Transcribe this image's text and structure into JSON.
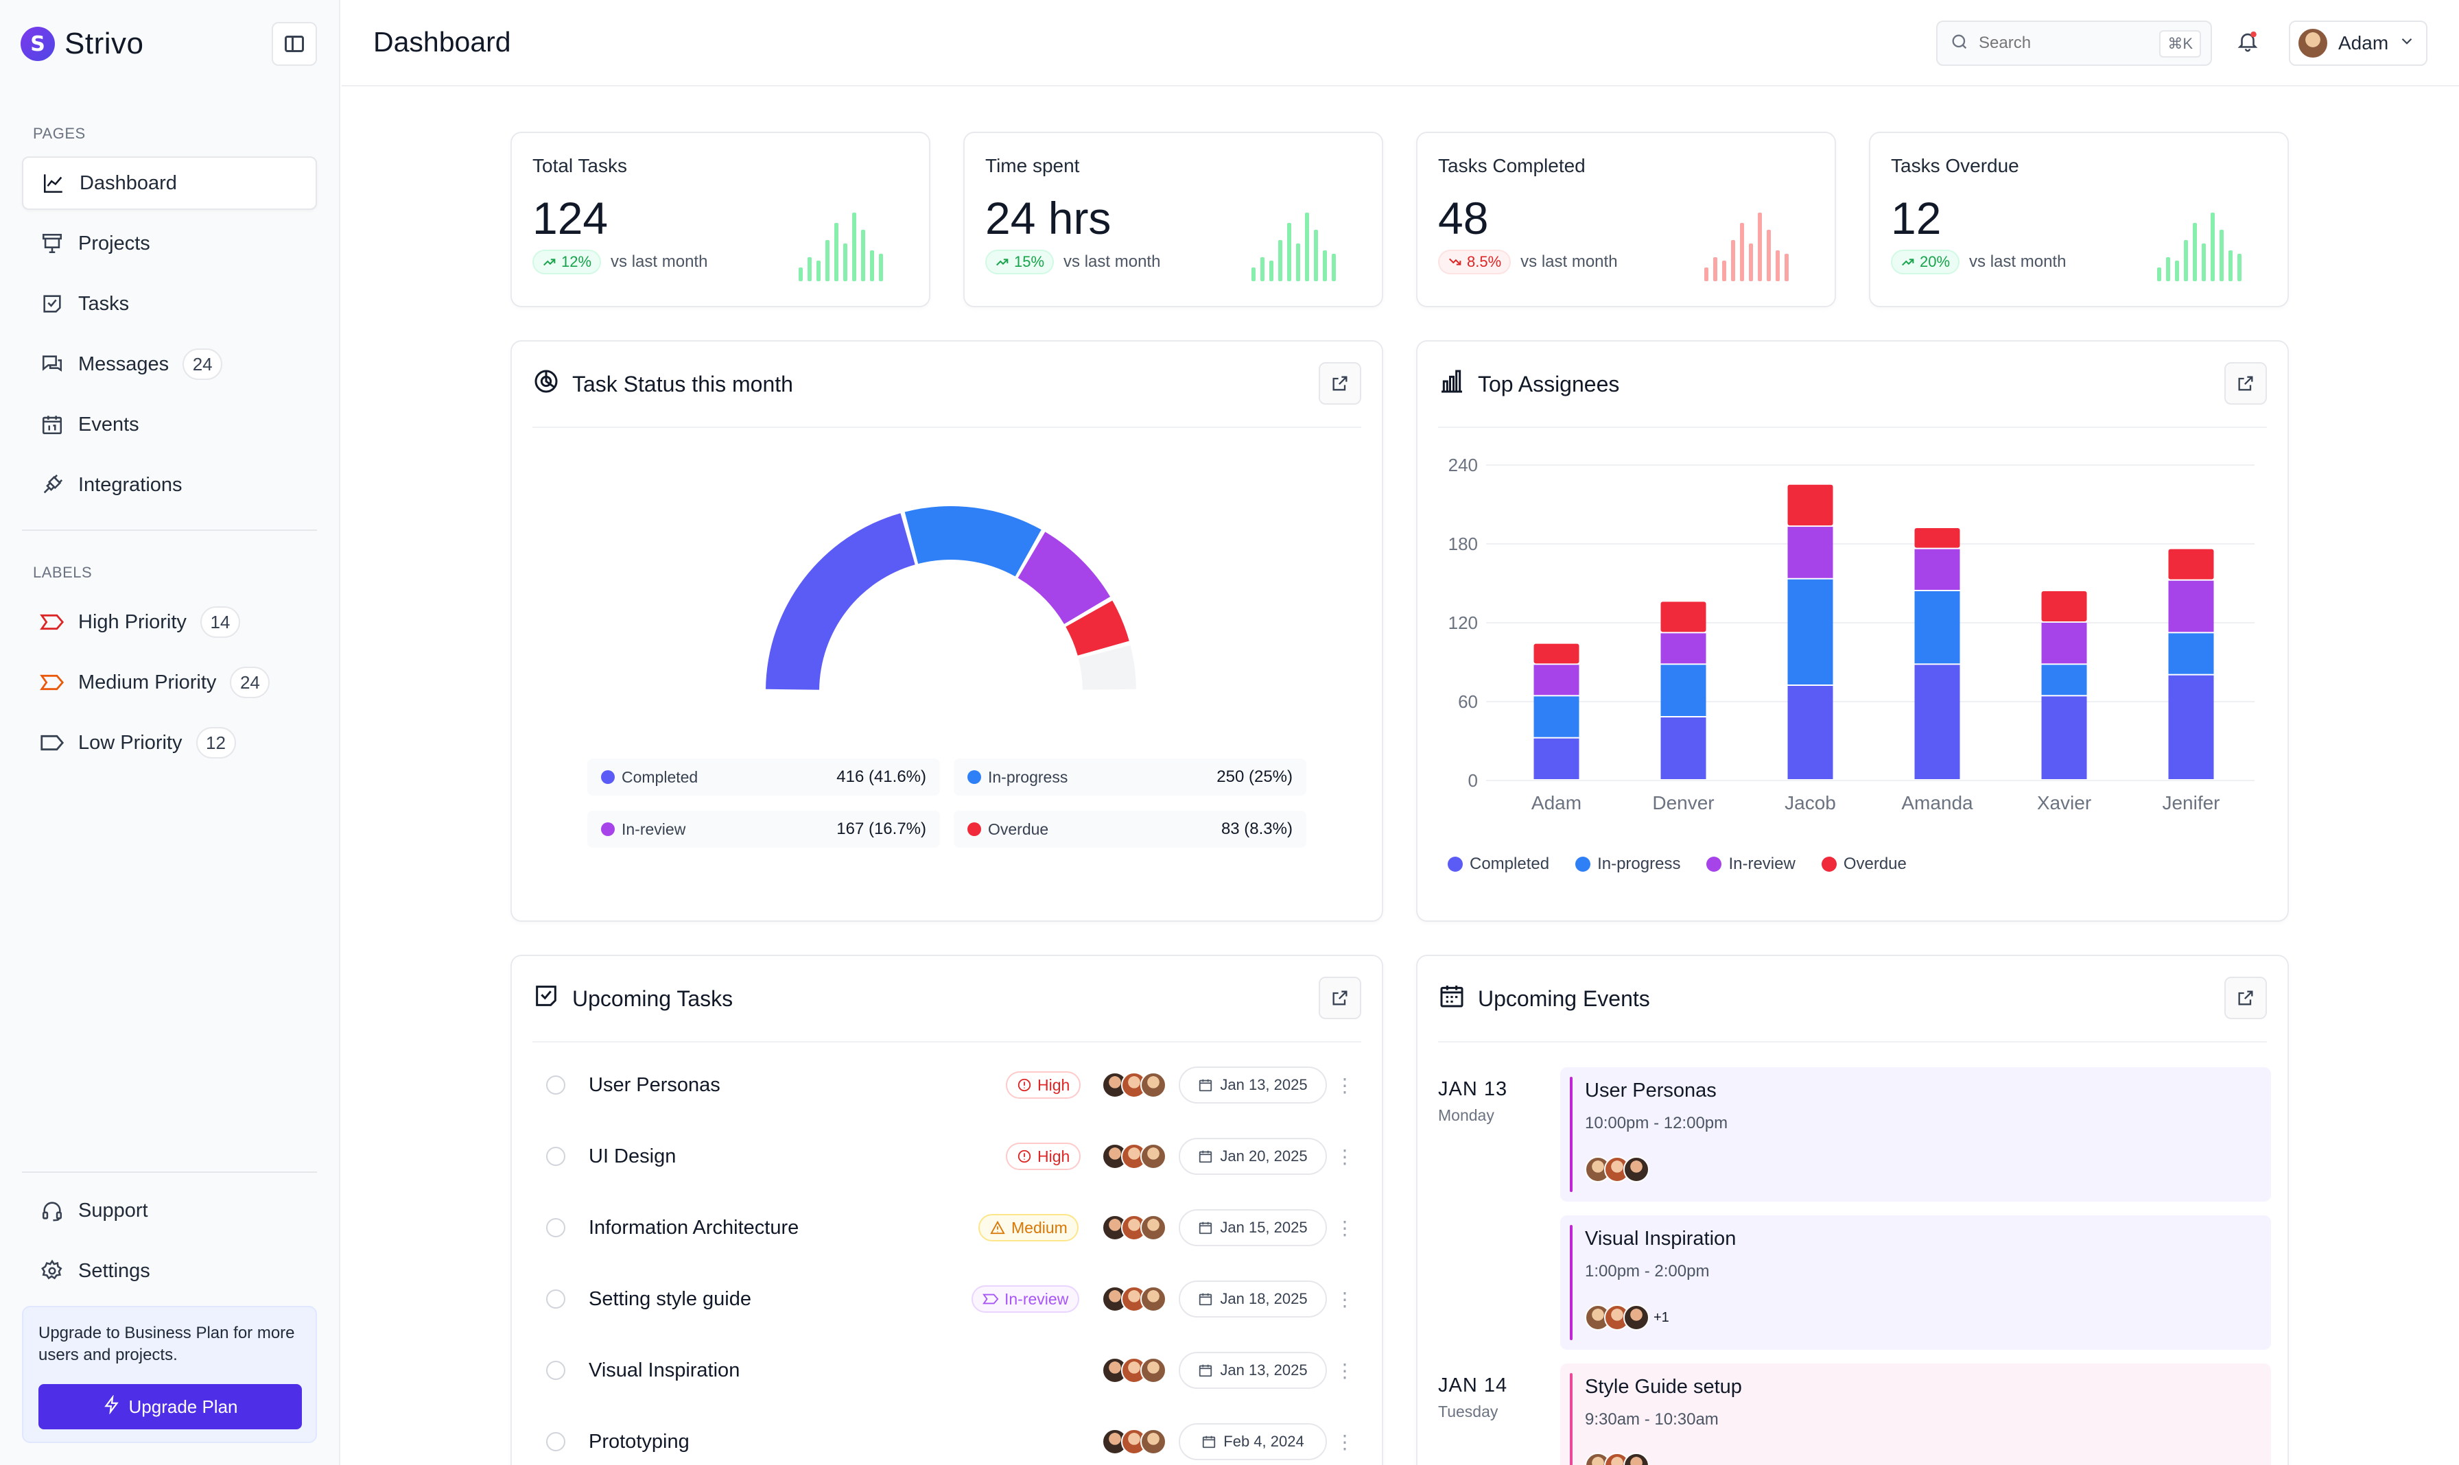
{
  "app": {
    "name": "Strivo"
  },
  "sidebar": {
    "pages_label": "PAGES",
    "labels_label": "LABELS",
    "pages": [
      {
        "label": "Dashboard",
        "icon": "chart-line-icon",
        "active": true
      },
      {
        "label": "Projects",
        "icon": "presentation-icon"
      },
      {
        "label": "Tasks",
        "icon": "task-icon"
      },
      {
        "label": "Messages",
        "icon": "messages-icon",
        "count": "24"
      },
      {
        "label": "Events",
        "icon": "calendar-icon"
      },
      {
        "label": "Integrations",
        "icon": "plug-icon"
      }
    ],
    "labels": [
      {
        "label": "High Priority",
        "count": "14",
        "color": "#dc2626"
      },
      {
        "label": "Medium Priority",
        "count": "24",
        "color": "#ea580c"
      },
      {
        "label": "Low Priority",
        "count": "12",
        "color": "#374151"
      }
    ],
    "bottom": [
      {
        "label": "Support",
        "icon": "headset-icon"
      },
      {
        "label": "Settings",
        "icon": "gear-icon"
      }
    ],
    "upgrade": {
      "text": "Upgrade to Business Plan for more users and projects.",
      "button": "Upgrade Plan"
    }
  },
  "header": {
    "title": "Dashboard",
    "search_placeholder": "Search",
    "search_shortcut": "⌘K",
    "user_name": "Adam"
  },
  "stats": [
    {
      "label": "Total Tasks",
      "value": "124",
      "change": "12%",
      "trend": "up",
      "note": "vs last month",
      "color": "#86efac"
    },
    {
      "label": "Time spent",
      "value": "24 hrs",
      "change": "15%",
      "trend": "up",
      "note": "vs last month",
      "color": "#86efac"
    },
    {
      "label": "Tasks Completed",
      "value": "48",
      "change": "8.5%",
      "trend": "down",
      "note": "vs last month",
      "color": "#fca5a5"
    },
    {
      "label": "Tasks Overdue",
      "value": "12",
      "change": "20%",
      "trend": "up",
      "note": "vs last month",
      "color": "#86efac"
    }
  ],
  "task_status": {
    "title": "Task Status this month",
    "legend": [
      {
        "name": "Completed",
        "value": "416 (41.6%)",
        "color": "#5b5cf6"
      },
      {
        "name": "In-progress",
        "value": "250 (25%)",
        "color": "#2f80f7"
      },
      {
        "name": "In-review",
        "value": "167 (16.7%)",
        "color": "#a644ea"
      },
      {
        "name": "Overdue",
        "value": "83 (8.3%)",
        "color": "#f02a3b"
      }
    ]
  },
  "top_assignees": {
    "title": "Top Assignees"
  },
  "chart_data": [
    {
      "type": "pie",
      "title": "Task Status this month",
      "categories": [
        "Completed",
        "In-progress",
        "In-review",
        "Overdue"
      ],
      "values": [
        416,
        250,
        167,
        83
      ],
      "colors": [
        "#5b5cf6",
        "#2f80f7",
        "#a644ea",
        "#f02a3b"
      ],
      "remainder_color": "#f3f4f6",
      "style": "semi-donut"
    },
    {
      "type": "bar",
      "stacked": true,
      "title": "Top Assignees",
      "categories": [
        "Adam",
        "Denver",
        "Jacob",
        "Amanda",
        "Xavier",
        "Jenifer"
      ],
      "yticks": [
        0,
        60,
        120,
        180,
        240
      ],
      "ylim": [
        0,
        240
      ],
      "legend_position": "bottom-left",
      "series": [
        {
          "name": "Completed",
          "color": "#5b5cf6",
          "values": [
            32,
            48,
            72,
            88,
            64,
            80
          ]
        },
        {
          "name": "In-progress",
          "color": "#2f80f7",
          "values": [
            32,
            40,
            81,
            56,
            24,
            32
          ]
        },
        {
          "name": "In-review",
          "color": "#a644ea",
          "values": [
            24,
            24,
            40,
            32,
            32,
            40
          ]
        },
        {
          "name": "Overdue",
          "color": "#f02a3b",
          "values": [
            16,
            24,
            32,
            16,
            24,
            24
          ]
        }
      ]
    }
  ],
  "upcoming_tasks": {
    "title": "Upcoming Tasks",
    "items": [
      {
        "name": "User Personas",
        "tag": "High",
        "tag_type": "high",
        "date": "Jan 13, 2025"
      },
      {
        "name": "UI Design",
        "tag": "High",
        "tag_type": "high",
        "date": "Jan 20, 2025"
      },
      {
        "name": "Information Architecture",
        "tag": "Medium",
        "tag_type": "medium",
        "date": "Jan 15, 2025"
      },
      {
        "name": "Setting style guide",
        "tag": "In-review",
        "tag_type": "review",
        "date": "Jan 18, 2025"
      },
      {
        "name": "Visual Inspiration",
        "tag": "",
        "tag_type": "",
        "date": "Jan 13, 2025"
      },
      {
        "name": "Prototyping",
        "tag": "",
        "tag_type": "",
        "date": "Feb 4, 2024"
      }
    ]
  },
  "upcoming_events": {
    "title": "Upcoming Events",
    "days": [
      {
        "date": "JAN 13",
        "weekday": "Monday"
      },
      {
        "date": "JAN 14",
        "weekday": "Tuesday"
      }
    ],
    "events": [
      {
        "title": "User Personas",
        "time": "10:00pm - 12:00pm",
        "more": ""
      },
      {
        "title": "Visual Inspiration",
        "time": "1:00pm - 2:00pm",
        "more": "+1"
      },
      {
        "title": "Style Guide setup",
        "time": "9:30am - 10:30am",
        "more": ""
      }
    ]
  }
}
